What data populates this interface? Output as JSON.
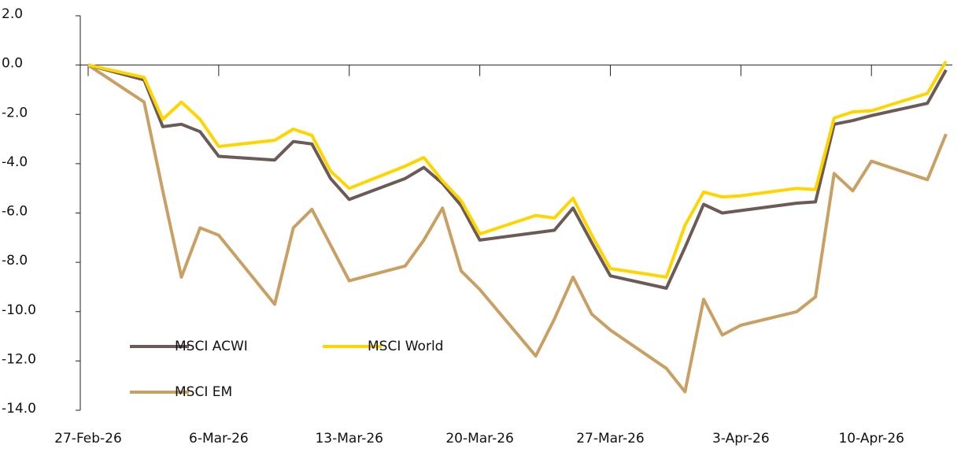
{
  "chart_data": {
    "type": "line",
    "x": [
      "27-Feb-26",
      "2-Mar-26",
      "3-Mar-26",
      "4-Mar-26",
      "5-Mar-26",
      "6-Mar-26",
      "9-Mar-26",
      "10-Mar-26",
      "11-Mar-26",
      "12-Mar-26",
      "13-Mar-26",
      "16-Mar-26",
      "17-Mar-26",
      "18-Mar-26",
      "19-Mar-26",
      "20-Mar-26",
      "23-Mar-26",
      "24-Mar-26",
      "25-Mar-26",
      "26-Mar-26",
      "27-Mar-26",
      "30-Mar-26",
      "31-Mar-26",
      "1-Apr-26",
      "2-Apr-26",
      "3-Apr-26",
      "6-Apr-26",
      "7-Apr-26",
      "8-Apr-26",
      "9-Apr-26",
      "10-Apr-26",
      "13-Apr-26",
      "14-Apr-26"
    ],
    "series": [
      {
        "name": "MSCI ACWI",
        "color": "#6b5a55",
        "values": [
          0,
          -0.6,
          -2.5,
          -2.4,
          -2.7,
          -3.7,
          -3.85,
          -3.1,
          -3.2,
          -4.6,
          -5.45,
          -4.6,
          -4.15,
          -4.8,
          -5.7,
          -7.1,
          -6.8,
          -6.7,
          -5.8,
          -7.2,
          -8.55,
          -9.05,
          -7.4,
          -5.65,
          -6.0,
          -5.9,
          -5.6,
          -5.55,
          -2.4,
          -2.25,
          -2.05,
          -1.55,
          -0.2
        ]
      },
      {
        "name": "MSCI World",
        "color": "#ffd500",
        "values": [
          0,
          -0.5,
          -2.2,
          -1.5,
          -2.2,
          -3.3,
          -3.05,
          -2.6,
          -2.85,
          -4.3,
          -5.0,
          -4.1,
          -3.75,
          -4.7,
          -5.5,
          -6.85,
          -6.1,
          -6.2,
          -5.4,
          -6.9,
          -8.25,
          -8.6,
          -6.5,
          -5.15,
          -5.35,
          -5.3,
          -5.0,
          -5.05,
          -2.15,
          -1.9,
          -1.85,
          -1.15,
          0.15
        ]
      },
      {
        "name": "MSCI EM",
        "color": "#c9a063",
        "values": [
          0,
          -1.5,
          -5.1,
          -8.6,
          -6.6,
          -6.9,
          -9.7,
          -6.6,
          -5.85,
          -7.3,
          -8.75,
          -8.15,
          -7.1,
          -5.8,
          -8.35,
          -9.1,
          -11.8,
          -10.3,
          -8.6,
          -10.1,
          -10.75,
          -12.3,
          -13.25,
          -9.5,
          -10.95,
          -10.55,
          -10.0,
          -9.4,
          -4.4,
          -5.1,
          -3.9,
          -4.65,
          -2.8
        ]
      }
    ],
    "xlim": [
      "27-Feb-26",
      "14-Apr-26"
    ],
    "xticks": [
      "27-Feb-26",
      "6-Mar-26",
      "13-Mar-26",
      "20-Mar-26",
      "27-Mar-26",
      "3-Apr-26",
      "10-Apr-26"
    ],
    "ylim": [
      -14,
      2
    ],
    "yticks": [
      {
        "value": -14,
        "label": "-14.0"
      },
      {
        "value": -12,
        "label": "-12.0"
      },
      {
        "value": -10,
        "label": "-10.0"
      },
      {
        "value": -8,
        "label": "-8.0"
      },
      {
        "value": -6,
        "label": "-6.0"
      },
      {
        "value": -4,
        "label": "-4.0"
      },
      {
        "value": -2,
        "label": "-2.0"
      },
      {
        "value": 0,
        "label": "0.0"
      },
      {
        "value": 2,
        "label": "2.0"
      }
    ]
  }
}
